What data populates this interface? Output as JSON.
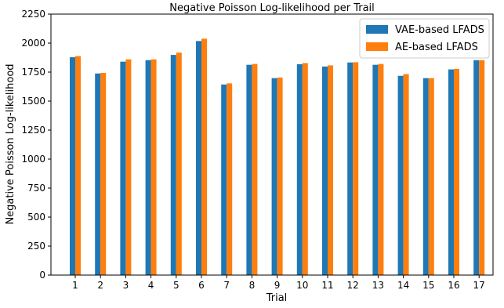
{
  "chart_data": {
    "type": "bar",
    "title": "Negative Poisson Log-likelihood per Trail",
    "xlabel": "Trial",
    "ylabel": "Negative Poisson Log-likelihood",
    "ylim": [
      0,
      2250
    ],
    "yticks": [
      0,
      250,
      500,
      750,
      1000,
      1250,
      1500,
      1750,
      2000,
      2250
    ],
    "categories": [
      "1",
      "2",
      "3",
      "4",
      "5",
      "6",
      "7",
      "8",
      "9",
      "10",
      "11",
      "12",
      "13",
      "14",
      "15",
      "16",
      "17"
    ],
    "series": [
      {
        "name": "VAE-based LFADS",
        "color": "#1f77b4",
        "values": [
          1878,
          1738,
          1840,
          1853,
          1898,
          2018,
          1643,
          1813,
          1698,
          1818,
          1798,
          1833,
          1813,
          1718,
          1698,
          1773,
          1853
        ]
      },
      {
        "name": "AE-based LFADS",
        "color": "#ff7f0e",
        "values": [
          1888,
          1743,
          1860,
          1860,
          1918,
          2038,
          1653,
          1820,
          1703,
          1828,
          1808,
          1835,
          1820,
          1733,
          1698,
          1778,
          1853
        ]
      }
    ],
    "legend_position": "top-right",
    "grid": false
  }
}
